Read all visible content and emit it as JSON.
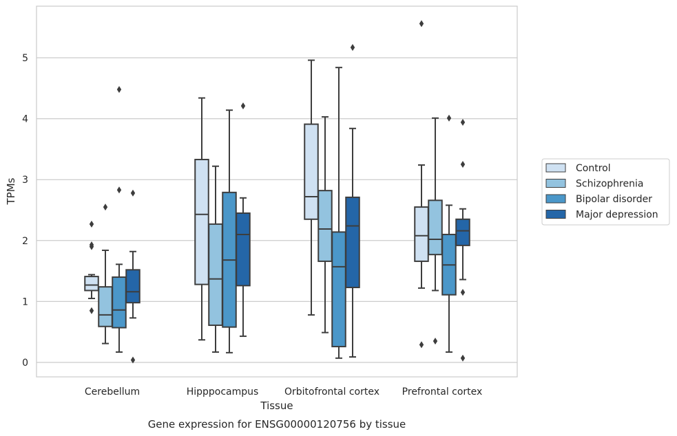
{
  "caption": "Gene expression for ENSG00000120756 by tissue",
  "chart_data": {
    "type": "box",
    "xlabel": "Tissue",
    "ylabel": "TPMs",
    "ylim": [
      -0.25,
      5.85
    ],
    "yticks": [
      "0",
      "1",
      "2",
      "3",
      "4",
      "5"
    ],
    "grid": "horizontal",
    "legend_placement": "right, outside plot",
    "categories": [
      "Cerebellum",
      "Hipppocampus",
      "Orbitofrontal cortex",
      "Prefrontal cortex"
    ],
    "series": [
      {
        "name": "Control",
        "color": "#cfe1f2",
        "boxes": [
          {
            "whislo": 1.05,
            "q1": 1.18,
            "med": 1.27,
            "q3": 1.41,
            "whishi": 1.44,
            "fliers": [
              2.27,
              1.93,
              1.9,
              0.85
            ]
          },
          {
            "whislo": 0.37,
            "q1": 1.28,
            "med": 2.43,
            "q3": 3.33,
            "whishi": 4.34,
            "fliers": []
          },
          {
            "whislo": 0.78,
            "q1": 2.35,
            "med": 2.72,
            "q3": 3.91,
            "whishi": 4.96,
            "fliers": []
          },
          {
            "whislo": 1.22,
            "q1": 1.66,
            "med": 2.08,
            "q3": 2.55,
            "whishi": 3.24,
            "fliers": [
              5.56,
              0.29
            ]
          }
        ]
      },
      {
        "name": "Schizophrenia",
        "color": "#93c3df",
        "boxes": [
          {
            "whislo": 0.31,
            "q1": 0.59,
            "med": 0.78,
            "q3": 1.24,
            "whishi": 1.84,
            "fliers": [
              2.55
            ]
          },
          {
            "whislo": 0.17,
            "q1": 0.61,
            "med": 1.37,
            "q3": 2.27,
            "whishi": 3.22,
            "fliers": []
          },
          {
            "whislo": 0.49,
            "q1": 1.66,
            "med": 2.19,
            "q3": 2.82,
            "whishi": 4.03,
            "fliers": []
          },
          {
            "whislo": 1.18,
            "q1": 1.77,
            "med": 2.02,
            "q3": 2.66,
            "whishi": 4.01,
            "fliers": [
              0.35
            ]
          }
        ]
      },
      {
        "name": "Bipolar disorder",
        "color": "#4b97c9",
        "boxes": [
          {
            "whislo": 0.17,
            "q1": 0.57,
            "med": 0.86,
            "q3": 1.4,
            "whishi": 1.61,
            "fliers": [
              4.48,
              2.83
            ]
          },
          {
            "whislo": 0.16,
            "q1": 0.58,
            "med": 1.68,
            "q3": 2.79,
            "whishi": 4.14,
            "fliers": []
          },
          {
            "whislo": 0.07,
            "q1": 0.26,
            "med": 1.57,
            "q3": 2.14,
            "whishi": 4.84,
            "fliers": []
          },
          {
            "whislo": 0.17,
            "q1": 1.11,
            "med": 1.6,
            "q3": 2.1,
            "whishi": 2.58,
            "fliers": [
              4.01
            ]
          }
        ]
      },
      {
        "name": "Major depression",
        "color": "#2466a8",
        "boxes": [
          {
            "whislo": 0.73,
            "q1": 0.98,
            "med": 1.16,
            "q3": 1.52,
            "whishi": 1.82,
            "fliers": [
              2.78,
              0.04
            ]
          },
          {
            "whislo": 0.43,
            "q1": 1.26,
            "med": 2.1,
            "q3": 2.45,
            "whishi": 2.7,
            "fliers": [
              4.21
            ]
          },
          {
            "whislo": 0.09,
            "q1": 1.23,
            "med": 2.24,
            "q3": 2.71,
            "whishi": 3.84,
            "fliers": [
              5.17
            ]
          },
          {
            "whislo": 1.36,
            "q1": 1.92,
            "med": 2.16,
            "q3": 2.35,
            "whishi": 2.52,
            "fliers": [
              3.94,
              3.25,
              1.15,
              0.07
            ]
          }
        ]
      }
    ]
  }
}
